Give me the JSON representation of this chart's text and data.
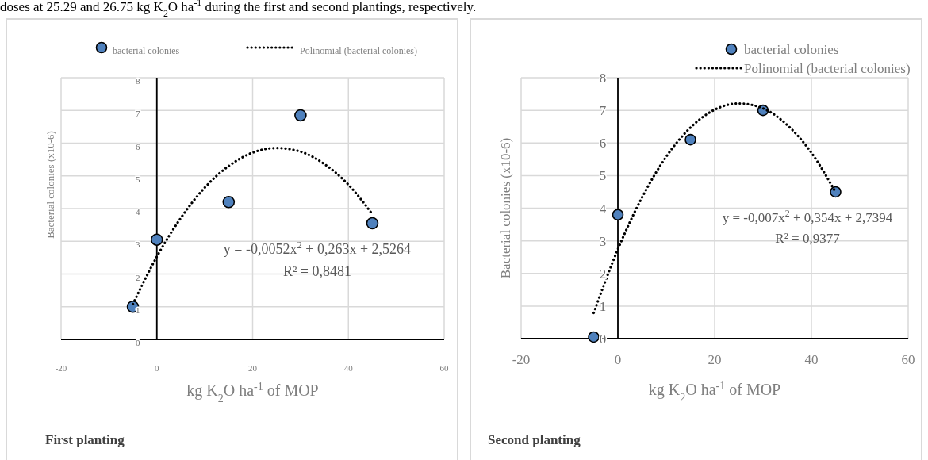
{
  "chart_data": [
    {
      "type": "scatter",
      "title": "First planting",
      "xlabel": "kg K$_{2}$O ha$^{-1}$ of MOP",
      "ylabel": "Bacterial colonies (x10-6)",
      "annotations": [
        "doses at 25.29 and 26.75 kg K$_{2}$O ha$^{-1}$ during the first and second plantings, respectively.",
        "y = -0,0052x$^{2}$ + 0,263x + 2,5264",
        "R² = 0,8481"
      ],
      "xlim": [
        -20,
        60
      ],
      "xticks": [
        -20,
        0,
        20,
        40,
        60
      ],
      "ylim": [
        0,
        8
      ],
      "yticks": [
        0,
        1,
        2,
        3,
        4,
        5,
        6,
        7,
        8
      ],
      "grid": true,
      "legend": "top",
      "series": [
        {
          "name": "bacterial colonies",
          "color": "#4f81bd",
          "marker": "circle",
          "x": [
            -5,
            0,
            15,
            30,
            45
          ],
          "values": [
            1,
            3.05,
            4.2,
            6.85,
            3.55
          ]
        },
        {
          "name": "Polinomial (bacterial colonies)",
          "type": "line",
          "color": "#000000",
          "marker": "none",
          "line_style": "dotted",
          "x": [
            -5,
            0,
            5,
            10,
            15,
            20,
            25,
            30,
            35,
            40,
            45
          ],
          "values": [
            1.08,
            2.53,
            3.71,
            4.64,
            5.3,
            5.71,
            5.85,
            5.74,
            5.36,
            4.73,
            3.83
          ]
        }
      ]
    },
    {
      "type": "scatter",
      "title": "Second planting",
      "xlabel": "kg K$_{2}$O ha$^{-1}$ of MOP",
      "ylabel": "Bacterial colonies (x10-6)",
      "annotations": [
        "y = -0,007x$^{2}$ + 0,354x + 2,7394",
        "R² = 0,9377"
      ],
      "xlim": [
        -20,
        60
      ],
      "xticks": [
        -20,
        0,
        20,
        40,
        60
      ],
      "ylim": [
        0,
        8
      ],
      "yticks": [
        0,
        1,
        2,
        3,
        4,
        5,
        6,
        7,
        8
      ],
      "grid": true,
      "legend": "top right",
      "series": [
        {
          "name": "bacterial colonies",
          "color": "#4f81bd",
          "marker": "circle",
          "x": [
            -5,
            0,
            15,
            30,
            45
          ],
          "values": [
            0.05,
            3.8,
            6.1,
            7.0,
            4.5
          ]
        },
        {
          "name": "Polinomial (bacterial colonies)",
          "type": "line",
          "color": "#000000",
          "marker": "none",
          "line_style": "dotted",
          "x": [
            -5,
            0,
            5,
            10,
            15,
            20,
            25,
            30,
            35,
            40,
            45
          ],
          "values": [
            0.79,
            2.74,
            4.33,
            5.58,
            6.47,
            7.02,
            7.21,
            7.06,
            6.55,
            5.7,
            4.49
          ]
        }
      ]
    }
  ]
}
